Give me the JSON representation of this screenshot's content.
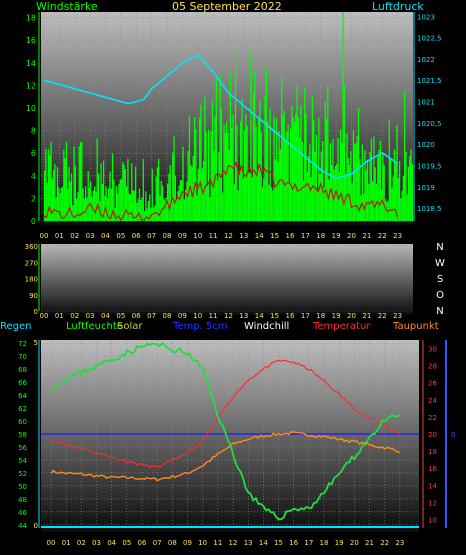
{
  "header": {
    "title": "05 September 2022",
    "left_label": "Windstärke",
    "right_label": "Luftdruck"
  },
  "colors": {
    "wind": "#00ff00",
    "pressure": "#00e5ff",
    "gust": "#33ee33",
    "temperature": "#ff2a2a",
    "dewpoint": "#ff8c1a",
    "humidity": "#22dd44",
    "temp5cm": "#1a1aff",
    "axis_yellow": "#ffe14d",
    "axis_red": "#ff3b3b",
    "axis_blue": "#3355ff"
  },
  "chart_data": [
    {
      "id": "wind-pressure",
      "type": "bar",
      "title": "05 September 2022",
      "x": [
        "00",
        "01",
        "02",
        "03",
        "04",
        "05",
        "06",
        "07",
        "08",
        "09",
        "10",
        "11",
        "12",
        "13",
        "14",
        "15",
        "16",
        "17",
        "18",
        "19",
        "20",
        "21",
        "22",
        "23"
      ],
      "y_left_label": "Windstärke",
      "y_left_ticks": [
        "0",
        "2",
        "4",
        "6",
        "8",
        "10",
        "12",
        "14",
        "16",
        "18"
      ],
      "y_left_range": [
        0,
        18.5
      ],
      "y_right_label": "Luftdruck",
      "y_right_ticks": [
        "1018,5",
        "1019",
        "1019,5",
        "1020",
        "1020,5",
        "1021",
        "1021,5",
        "1022",
        "1022,5",
        "1023"
      ],
      "y_right_range": [
        1018.2,
        1023.1
      ],
      "series": [
        {
          "name": "Windstärke",
          "type": "bar",
          "hourly_avg": [
            3.5,
            4.0,
            3.6,
            3.8,
            3.2,
            3.6,
            2.2,
            3.0,
            4.2,
            5.0,
            6.0,
            7.0,
            7.5,
            8.0,
            7.5,
            6.8,
            7.2,
            6.5,
            7.0,
            6.2,
            4.8,
            4.2,
            4.6,
            4.5
          ],
          "hourly_peak": [
            7,
            7,
            7,
            7.3,
            6,
            5.5,
            5.5,
            5.5,
            7.5,
            9.3,
            11,
            13,
            15,
            15,
            13.5,
            13,
            12,
            11,
            12,
            18.5,
            10,
            7.5,
            9,
            11.5
          ]
        },
        {
          "name": "Luftdruck",
          "type": "line",
          "x": [
            0,
            1,
            2,
            3,
            4,
            5,
            5.5,
            6,
            6.5,
            7,
            8,
            9,
            10,
            11,
            12,
            13,
            14,
            15,
            16,
            17,
            18,
            19,
            20,
            21,
            22,
            23
          ],
          "values": [
            1021.5,
            1021.4,
            1021.3,
            1021.2,
            1021.1,
            1021.0,
            1020.95,
            1021.0,
            1021.05,
            1021.3,
            1021.6,
            1021.9,
            1022.1,
            1021.7,
            1021.2,
            1020.9,
            1020.6,
            1020.3,
            1020.0,
            1019.7,
            1019.4,
            1019.2,
            1019.3,
            1019.6,
            1019.8,
            1019.55
          ]
        },
        {
          "name": "Böen",
          "type": "line",
          "x": [
            0,
            1,
            2,
            3,
            4,
            5,
            6,
            7,
            8,
            9,
            10,
            11,
            12,
            13,
            14,
            15,
            16,
            17,
            18,
            19,
            20,
            21,
            22,
            23
          ],
          "values": [
            1.0,
            0.6,
            0.6,
            1.0,
            0.8,
            0.5,
            0.2,
            0.5,
            1.2,
            2.5,
            2.8,
            3.2,
            5.0,
            4.2,
            4.5,
            3.5,
            3.0,
            3.2,
            2.8,
            2.2,
            1.8,
            1.2,
            1.4,
            0.8
          ]
        }
      ]
    },
    {
      "id": "wind-direction",
      "type": "scatter",
      "x": [
        "00",
        "01",
        "02",
        "03",
        "04",
        "05",
        "06",
        "07",
        "08",
        "09",
        "10",
        "11",
        "12",
        "13",
        "14",
        "15",
        "16",
        "17",
        "18",
        "19",
        "20",
        "21",
        "22",
        "23"
      ],
      "y_ticks": [
        "360",
        "270",
        "180",
        "90",
        "0"
      ],
      "y_range": [
        0,
        360
      ],
      "compass": [
        "N",
        "W",
        "S",
        "O",
        "N"
      ],
      "values": []
    },
    {
      "id": "temperature-humidity",
      "type": "line",
      "x": [
        "00",
        "01",
        "02",
        "03",
        "04",
        "05",
        "06",
        "07",
        "08",
        "09",
        "10",
        "11",
        "12",
        "13",
        "14",
        "15",
        "16",
        "17",
        "18",
        "19",
        "20",
        "21",
        "22",
        "23"
      ],
      "y_left_ticks": [
        "44",
        "46",
        "48",
        "50",
        "52",
        "54",
        "56",
        "58",
        "60",
        "62",
        "64",
        "66",
        "68",
        "70",
        "72"
      ],
      "y_left_range": [
        43.5,
        72.5
      ],
      "y_left2_ticks": [
        "0",
        "5"
      ],
      "y_right_ticks": [
        "10",
        "12",
        "14",
        "16",
        "18",
        "20",
        "22",
        "24",
        "26",
        "28",
        "30"
      ],
      "y_right_range": [
        9,
        31
      ],
      "y_right2_ticks": [
        "0"
      ],
      "legend": [
        "Regen",
        "Luftfeuchte",
        "Solar",
        "Temp. 5cm",
        "Windchill",
        "Temperatur",
        "Taupunkt"
      ],
      "series": [
        {
          "name": "Luftfeuchte",
          "axis": "left",
          "x": [
            0,
            1,
            2,
            3,
            4,
            5,
            6,
            6.5,
            7,
            7.5,
            8,
            9,
            10,
            11,
            12,
            13,
            14,
            15,
            16,
            17,
            18,
            19,
            20,
            21,
            22,
            23
          ],
          "values": [
            65,
            66.5,
            67.5,
            68.5,
            69.5,
            70.5,
            71.5,
            71.8,
            71.8,
            71.5,
            71,
            70.5,
            68,
            61,
            55,
            49,
            46.5,
            45,
            46.5,
            46.5,
            49,
            52,
            54.5,
            57.5,
            60,
            61
          ]
        },
        {
          "name": "Temperatur",
          "axis": "right",
          "x": [
            0,
            1,
            2,
            3,
            4,
            5,
            6,
            7,
            8,
            9,
            10,
            11,
            12,
            13,
            14,
            15,
            16,
            17,
            18,
            19,
            20,
            21,
            22,
            23
          ],
          "values": [
            19.3,
            18.8,
            18.3,
            17.8,
            17.3,
            16.8,
            16.4,
            16.1,
            16.9,
            17.8,
            19.0,
            21.8,
            24.4,
            26.3,
            27.6,
            28.6,
            28.4,
            27.6,
            26.2,
            24.6,
            23.0,
            21.8,
            21.0,
            20.0
          ]
        },
        {
          "name": "Taupunkt",
          "axis": "right",
          "x": [
            0,
            1,
            2,
            3,
            4,
            5,
            6,
            7,
            8,
            9,
            10,
            11,
            12,
            13,
            14,
            15,
            16,
            17,
            18,
            19,
            20,
            21,
            22,
            23
          ],
          "values": [
            15.6,
            15.4,
            15.3,
            15.1,
            14.9,
            14.9,
            14.8,
            14.7,
            15.0,
            15.4,
            16.3,
            17.6,
            18.8,
            19.4,
            19.8,
            20.0,
            20.1,
            19.9,
            19.7,
            19.4,
            19.1,
            18.7,
            18.4,
            18.0
          ]
        },
        {
          "name": "Temp. 5cm",
          "axis": "right",
          "x": [
            0,
            23.5
          ],
          "values": [
            20,
            20
          ]
        }
      ]
    }
  ]
}
